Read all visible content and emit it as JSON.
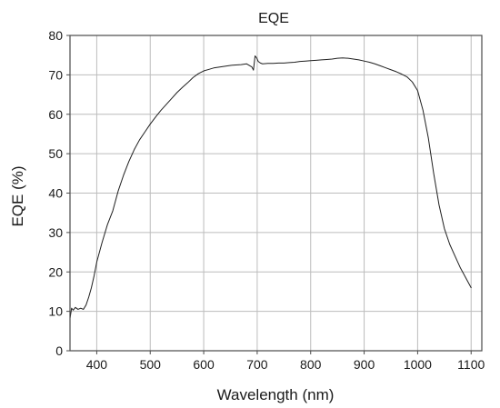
{
  "chart_data": {
    "type": "line",
    "title": "EQE",
    "xlabel": "Wavelength (nm)",
    "ylabel": "EQE (%)",
    "xlim": [
      350,
      1120
    ],
    "ylim": [
      0,
      80
    ],
    "xticks": [
      400,
      500,
      600,
      700,
      800,
      900,
      1000,
      1100
    ],
    "yticks": [
      0,
      10,
      20,
      30,
      40,
      50,
      60,
      70,
      80
    ],
    "grid": true,
    "legend": "none",
    "colors": {
      "line": "#1f1f1f",
      "grid": "#bcbcbc",
      "frame": "#4a4a4a"
    },
    "series": [
      {
        "x": [
          350,
          353,
          356,
          360,
          365,
          370,
          375,
          380,
          385,
          390,
          395,
          400,
          410,
          420,
          430,
          440,
          450,
          460,
          470,
          480,
          490,
          500,
          510,
          520,
          530,
          540,
          550,
          560,
          570,
          580,
          590,
          600,
          610,
          620,
          630,
          640,
          650,
          660,
          670,
          680,
          690,
          693,
          696,
          699,
          702,
          706,
          710,
          720,
          730,
          740,
          750,
          760,
          770,
          780,
          790,
          800,
          810,
          820,
          830,
          840,
          850,
          860,
          870,
          880,
          890,
          900,
          910,
          920,
          930,
          940,
          950,
          960,
          970,
          980,
          990,
          1000,
          1010,
          1020,
          1030,
          1040,
          1050,
          1060,
          1070,
          1080,
          1090,
          1100
        ],
        "y": [
          8.2,
          10.8,
          10.3,
          11.0,
          10.5,
          10.8,
          10.5,
          11.6,
          13.6,
          16.0,
          19.0,
          22.5,
          27.5,
          32.0,
          35.5,
          40.5,
          44.5,
          48.0,
          51.0,
          53.5,
          55.5,
          57.5,
          59.3,
          61.0,
          62.5,
          64.0,
          65.5,
          66.8,
          68.0,
          69.3,
          70.3,
          71.0,
          71.4,
          71.8,
          72.0,
          72.2,
          72.4,
          72.5,
          72.6,
          72.8,
          72.0,
          71.2,
          74.8,
          74.3,
          73.4,
          73.0,
          72.8,
          72.9,
          72.9,
          73.0,
          73.0,
          73.1,
          73.2,
          73.4,
          73.5,
          73.6,
          73.7,
          73.8,
          73.9,
          74.0,
          74.2,
          74.3,
          74.2,
          74.0,
          73.8,
          73.5,
          73.2,
          72.8,
          72.3,
          71.8,
          71.3,
          70.8,
          70.2,
          69.5,
          68.2,
          66.0,
          61.0,
          54.0,
          45.0,
          37.0,
          31.0,
          27.0,
          24.0,
          21.0,
          18.5,
          16.0
        ]
      }
    ]
  }
}
